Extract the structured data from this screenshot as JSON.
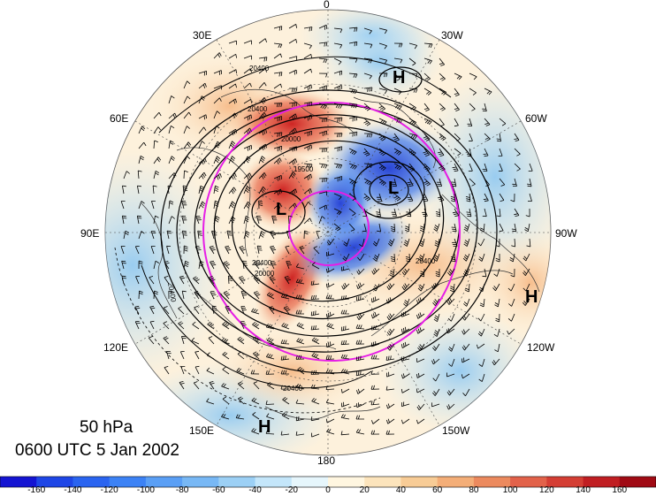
{
  "map": {
    "level_label": "50 hPa",
    "time_label": "0600 UTC 5 Jan 2002",
    "longitude_labels": {
      "top": "0",
      "bottom": "180",
      "left": "90E",
      "right": "90W",
      "upper_left_1": "30E",
      "upper_left_2": "60E",
      "upper_right_1": "30W",
      "upper_right_2": "60W",
      "lower_left_1": "120E",
      "lower_left_2": "150E",
      "lower_right_1": "120W",
      "lower_right_2": "150W"
    },
    "pressure_centers": [
      {
        "label": "H",
        "name": "high-north-atlantic"
      },
      {
        "label": "L",
        "name": "low-greenland"
      },
      {
        "label": "L",
        "name": "low-siberia"
      },
      {
        "label": "H",
        "name": "high-north-america"
      },
      {
        "label": "H",
        "name": "high-north-pacific"
      }
    ],
    "contour_labels": [
      "20400",
      "20400",
      "20400",
      "20400",
      "20400",
      "20400",
      "19500",
      "20000",
      "20000"
    ],
    "colors": {
      "positive_anomaly": "#c81e1e",
      "negative_anomaly": "#1e46d2",
      "reference_circles": "#e61ee6",
      "contours": "#000000"
    }
  },
  "colorbar": {
    "ticks": [
      "-160",
      "-140",
      "-120",
      "-100",
      "-80",
      "-60",
      "-40",
      "-20",
      "0",
      "20",
      "40",
      "60",
      "80",
      "100",
      "120",
      "140",
      "160"
    ],
    "colors": [
      "#1414d2",
      "#1e46e6",
      "#2a64f0",
      "#3c82f5",
      "#5a9ff5",
      "#78b8f5",
      "#9cd0f5",
      "#c4e6fa",
      "#e6f6fc",
      "#fff6e0",
      "#fce4bc",
      "#f8cc96",
      "#f4ae78",
      "#ec8a5e",
      "#e2624a",
      "#d43e34",
      "#c01e22",
      "#a00a14"
    ]
  }
}
